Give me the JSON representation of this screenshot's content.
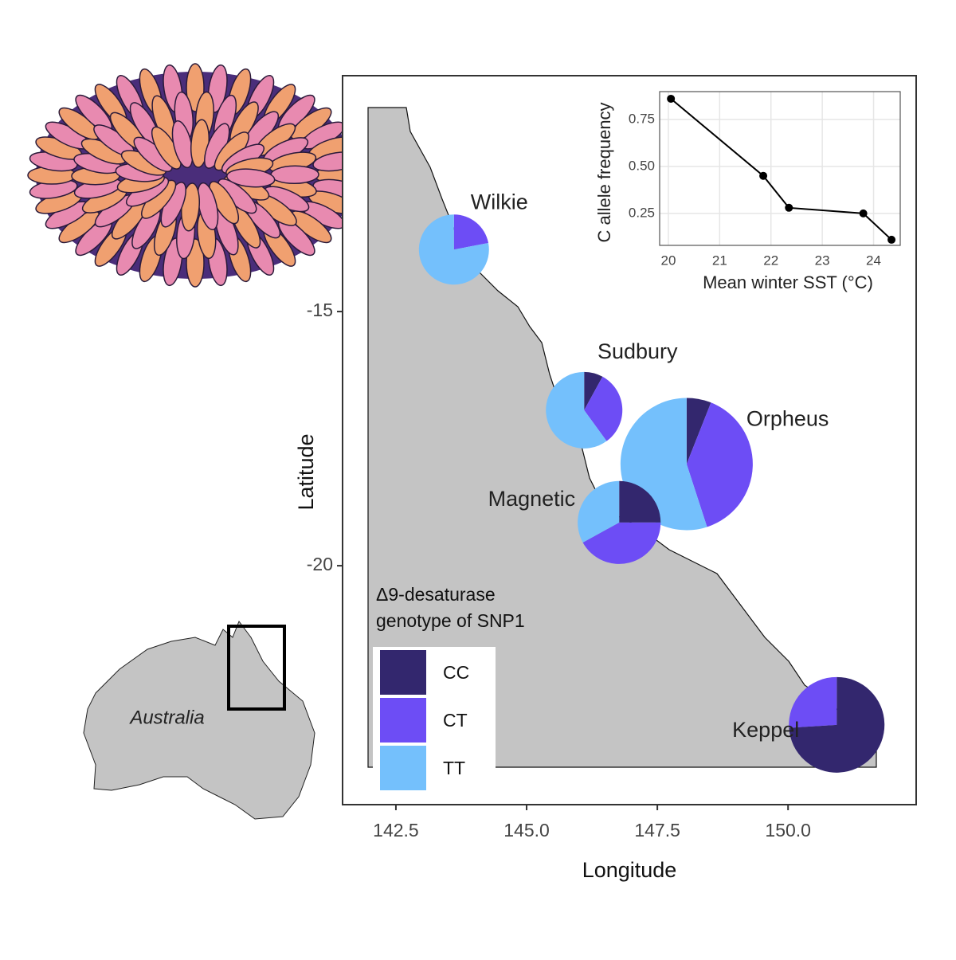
{
  "chart_data": [
    {
      "type": "map",
      "x_label": "Longitude",
      "y_label": "Latitude",
      "xlim": [
        141.48,
        152.45
      ],
      "ylim": [
        -24.7,
        -10.36
      ],
      "xticks": [
        {
          "value": 142.5,
          "label": "142.5"
        },
        {
          "value": 145,
          "label": "145.0"
        },
        {
          "value": 147.5,
          "label": "147.5"
        },
        {
          "value": 150,
          "label": "150.0"
        }
      ],
      "yticks": [
        -15,
        -20
      ],
      "legend_title": "Δ9-desaturase genotype of SNP1",
      "legend": "bottom-left",
      "sites": [
        "Wilkie",
        "Sudbury",
        "Orpheus",
        "Magnetic",
        "Keppel"
      ],
      "lon": [
        143.61,
        146.1,
        148.06,
        146.77,
        150.93
      ],
      "lat": [
        -13.78,
        -16.94,
        -18.0,
        -19.15,
        -23.13
      ],
      "relative_size": [
        1,
        1.19,
        3.56,
        1.4,
        1.86
      ],
      "series": [
        {
          "name": "CC",
          "color": "#33276e",
          "values": [
            0,
            8,
            6,
            25,
            74
          ]
        },
        {
          "name": "CT",
          "color": "#6d4df5",
          "values": [
            22,
            32,
            39,
            42,
            26
          ]
        },
        {
          "name": "TT",
          "color": "#74c0fc",
          "values": [
            78,
            60,
            55,
            33,
            0
          ]
        }
      ]
    },
    {
      "type": "line",
      "x_label": "Mean winter SST (°C)",
      "y_label": "C allele frequency",
      "x": [
        20.05,
        21.85,
        22.35,
        23.8,
        24.35
      ],
      "values": [
        0.86,
        0.45,
        0.28,
        0.25,
        0.11
      ],
      "color": "#000000",
      "xlim": [
        19.83,
        24.52
      ],
      "ylim": [
        0.08,
        0.898
      ],
      "xticks": [
        20,
        21,
        22,
        23,
        24
      ],
      "yticks": [
        0.25,
        {
          "value": 0.5,
          "label": "0.50"
        },
        0.75
      ],
      "grid": true
    }
  ],
  "inset_map": {
    "label": "Australia"
  }
}
